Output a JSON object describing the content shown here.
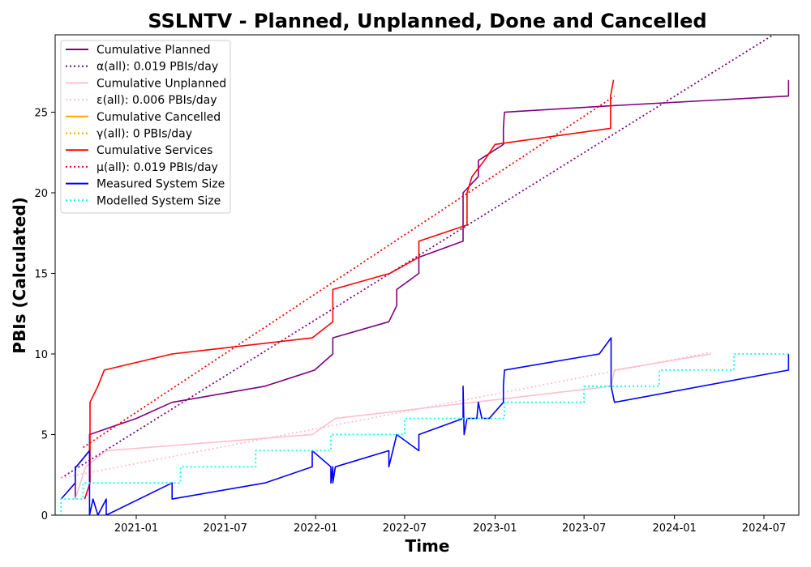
{
  "chart_data": {
    "type": "line",
    "title": "SSLNTV - Planned, Unplanned, Done  and Cancelled",
    "xlabel": "Time",
    "ylabel": "PBIs (Calculated)",
    "xlim": [
      "2020-07-20",
      "2024-09-10"
    ],
    "ylim": [
      0,
      29.8
    ],
    "grid": false,
    "legend_position": "upper left",
    "xticks": [
      {
        "value": "2021-01-01",
        "label": "2021-01"
      },
      {
        "value": "2021-07-01",
        "label": "2021-07"
      },
      {
        "value": "2022-01-01",
        "label": "2022-01"
      },
      {
        "value": "2022-07-01",
        "label": "2022-07"
      },
      {
        "value": "2023-01-01",
        "label": "2023-01"
      },
      {
        "value": "2023-07-01",
        "label": "2023-07"
      },
      {
        "value": "2024-01-01",
        "label": "2024-01"
      },
      {
        "value": "2024-07-01",
        "label": "2024-07"
      }
    ],
    "yticks": [
      {
        "value": 0,
        "label": "0"
      },
      {
        "value": 5,
        "label": "5"
      },
      {
        "value": 10,
        "label": "10"
      },
      {
        "value": 15,
        "label": "15"
      },
      {
        "value": 20,
        "label": "20"
      },
      {
        "value": 25,
        "label": "25"
      }
    ],
    "series": [
      {
        "name": "Cumulative Planned",
        "color": "#800080",
        "style": "solid",
        "x": [
          "2020-08-30",
          "2020-08-30",
          "2020-09-01",
          "2020-09-28",
          "2020-09-28",
          "2021-01-01",
          "2021-03-15",
          "2021-09-20",
          "2021-12-30",
          "2022-02-05",
          "2022-02-05",
          "2022-05-30",
          "2022-06-15",
          "2022-06-15",
          "2022-07-30",
          "2022-07-30",
          "2022-10-28",
          "2022-10-28",
          "2022-11-28",
          "2022-11-28",
          "2023-01-18",
          "2023-01-18",
          "2023-01-20",
          "2023-08-25",
          "2024-08-20",
          "2024-08-20"
        ],
        "y": [
          1,
          3,
          3,
          4,
          5,
          6,
          7,
          8,
          9,
          10,
          11,
          12,
          13,
          14,
          15,
          16,
          17,
          20,
          21,
          22,
          23,
          24,
          25,
          25.4,
          26,
          27
        ]
      },
      {
        "name": "α(all): 0.019 PBIs/day",
        "color": "#800080",
        "style": "dotted",
        "x": [
          "2020-08-01",
          "2024-07-20"
        ],
        "y": [
          2.3,
          29.8
        ]
      },
      {
        "name": "Cumulative Unplanned",
        "color": "#ffc0cb",
        "style": "solid",
        "x": [
          "2020-08-30",
          "2020-09-20",
          "2020-11-01",
          "2021-12-25",
          "2022-02-10",
          "2023-08-25",
          "2023-09-01",
          "2024-03-15"
        ],
        "y": [
          1,
          3,
          4,
          5,
          6,
          8,
          9,
          10
        ]
      },
      {
        "name": "ε(all): 0.006 PBIs/day",
        "color": "#ffc0cb",
        "style": "dotted",
        "x": [
          "2020-08-01",
          "2024-03-15"
        ],
        "y": [
          2.3,
          10.1
        ]
      },
      {
        "name": "Cumulative Cancelled",
        "color": "#ffa500",
        "style": "solid",
        "x": [],
        "y": []
      },
      {
        "name": "γ(all): 0 PBIs/day",
        "color": "#ffa500",
        "style": "dotted",
        "x": [],
        "y": []
      },
      {
        "name": "Cumulative Services",
        "color": "#ff0000",
        "style": "solid",
        "x": [
          "2020-09-18",
          "2020-09-29",
          "2020-09-29",
          "2020-10-15",
          "2020-10-28",
          "2021-03-15",
          "2021-12-25",
          "2022-02-05",
          "2022-02-05",
          "2022-06-01",
          "2022-07-30",
          "2022-07-30",
          "2022-11-05",
          "2022-11-05",
          "2022-11-15",
          "2022-12-10",
          "2023-01-01",
          "2023-08-24",
          "2023-08-24",
          "2023-08-30"
        ],
        "y": [
          1,
          2,
          7,
          8,
          9,
          10,
          11,
          12,
          14,
          15,
          16,
          17,
          18,
          20,
          21,
          22,
          23,
          24,
          26,
          27
        ]
      },
      {
        "name": "μ(all): 0.019 PBIs/day",
        "color": "#ff0000",
        "style": "dotted",
        "x": [
          "2020-09-15",
          "2023-09-01"
        ],
        "y": [
          4.2,
          26
        ]
      },
      {
        "name": "Measured System Size",
        "color": "#0000ff",
        "style": "solid",
        "x": [
          "2020-08-01",
          "2020-08-30",
          "2020-08-30",
          "2020-09-01",
          "2020-09-28",
          "2020-09-28",
          "2020-10-05",
          "2020-10-15",
          "2020-11-01",
          "2020-11-01",
          "2021-03-15",
          "2021-03-15",
          "2021-09-20",
          "2021-12-25",
          "2021-12-25",
          "2022-02-01",
          "2022-02-01",
          "2022-02-05",
          "2022-02-05",
          "2022-02-10",
          "2022-05-30",
          "2022-05-30",
          "2022-06-15",
          "2022-07-30",
          "2022-07-30",
          "2022-10-28",
          "2022-10-28",
          "2022-10-30",
          "2022-11-05",
          "2022-11-25",
          "2022-11-28",
          "2022-12-05",
          "2022-12-20",
          "2023-01-18",
          "2023-01-18",
          "2023-01-20",
          "2023-08-01",
          "2023-08-25",
          "2023-08-25",
          "2023-09-01",
          "2024-08-20",
          "2024-08-20"
        ],
        "y": [
          1,
          2,
          3,
          3,
          4,
          0,
          1,
          0,
          1,
          0,
          2,
          1,
          2,
          3,
          4,
          3,
          2,
          3,
          2,
          3,
          4,
          3,
          5,
          4,
          5,
          6,
          8,
          5,
          6,
          6,
          7,
          6,
          6,
          7,
          8,
          9,
          10,
          11,
          8,
          7,
          9,
          10
        ]
      },
      {
        "name": "Modelled System Size",
        "color": "#00ffff",
        "style": "dotted",
        "x": [
          "2020-07-22",
          "2020-08-01",
          "2020-08-01",
          "2020-09-15",
          "2020-09-15",
          "2020-11-01",
          "2021-04-01",
          "2021-04-01",
          "2021-09-01",
          "2021-09-01",
          "2022-02-01",
          "2022-02-01",
          "2022-07-01",
          "2022-07-01",
          "2022-12-01",
          "2022-12-01",
          "2023-01-20",
          "2023-01-20",
          "2023-07-01",
          "2023-07-01",
          "2023-12-01",
          "2023-12-01",
          "2024-05-01",
          "2024-05-01",
          "2024-08-20"
        ],
        "y": [
          0,
          0,
          1,
          1,
          2,
          2,
          2,
          3,
          3,
          4,
          4,
          5,
          5,
          6,
          6,
          6,
          6,
          7,
          7,
          8,
          8,
          9,
          9,
          10,
          10
        ]
      }
    ]
  }
}
